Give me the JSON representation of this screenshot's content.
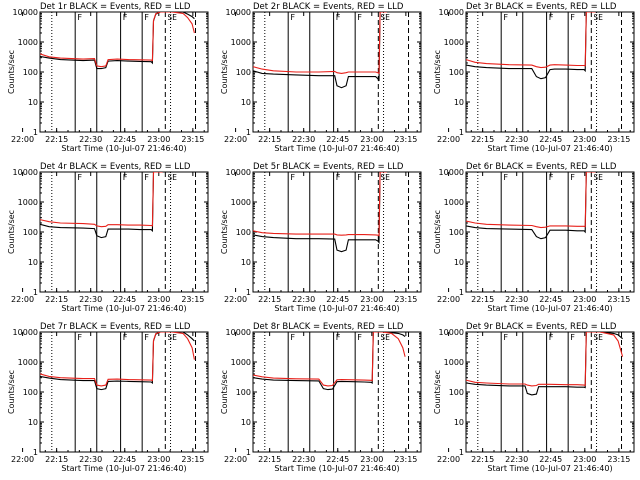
{
  "figure": {
    "panel_title_suffix": " BLACK = Events, RED = LLD",
    "xlabel": "Start Time (10-Jul-07 21:46:40)",
    "ylabel": "Counts/sec",
    "series_colors": {
      "events": "#000000",
      "lld": "#e8201a"
    },
    "xticks": [
      "22:00",
      "22:15",
      "22:30",
      "22:45",
      "23:00",
      "23:15"
    ],
    "xlim_minutes": [
      21.0,
      95.0
    ],
    "xtick_minutes": [
      13.33,
      28.33,
      43.33,
      58.33,
      73.33,
      88.33
    ],
    "ylim": [
      1,
      10000
    ],
    "marker_labels": [
      "F",
      "F",
      "F",
      "SE"
    ]
  },
  "chart_data": [
    {
      "type": "line",
      "id": "det1r",
      "title": "Det 1r",
      "ylim": [
        1,
        10000
      ],
      "series": [
        {
          "name": "Events",
          "x": [
            21,
            25,
            30,
            40,
            45,
            46,
            48,
            50,
            51,
            55,
            60,
            65,
            70,
            70.5,
            71,
            72,
            74,
            79,
            84,
            86,
            88,
            89
          ],
          "y": [
            330,
            290,
            260,
            240,
            250,
            130,
            130,
            140,
            230,
            240,
            230,
            225,
            220,
            200,
            5000,
            8500,
            10000,
            10000,
            10000,
            8500,
            7000,
            6000
          ]
        },
        {
          "name": "LLD",
          "x": [
            21,
            25,
            30,
            40,
            45,
            46,
            48,
            50,
            51,
            55,
            60,
            65,
            70,
            70.5,
            71,
            72,
            74,
            79,
            84,
            86,
            88,
            89
          ],
          "y": [
            400,
            320,
            290,
            270,
            280,
            160,
            150,
            160,
            260,
            270,
            260,
            255,
            250,
            240,
            5200,
            8800,
            10000,
            10000,
            9000,
            6500,
            4000,
            2000
          ]
        }
      ]
    },
    {
      "type": "line",
      "id": "det2r",
      "title": "Det 2r",
      "ylim": [
        1,
        10000
      ],
      "series": [
        {
          "name": "Events",
          "x": [
            21,
            25,
            30,
            40,
            50,
            57,
            58,
            60,
            62,
            63,
            70,
            75,
            76,
            76.5,
            77,
            80
          ],
          "y": [
            110,
            90,
            85,
            80,
            75,
            75,
            35,
            30,
            35,
            70,
            70,
            70,
            60,
            50,
            10000,
            10000
          ]
        },
        {
          "name": "LLD",
          "x": [
            21,
            25,
            30,
            40,
            50,
            57,
            58,
            60,
            62,
            63,
            70,
            75,
            76,
            76.5,
            77,
            80
          ],
          "y": [
            150,
            125,
            110,
            100,
            100,
            105,
            95,
            90,
            95,
            100,
            100,
            100,
            95,
            90,
            10000,
            10000
          ]
        }
      ]
    },
    {
      "type": "line",
      "id": "det3r",
      "title": "Det 3r",
      "ylim": [
        1,
        10000
      ],
      "series": [
        {
          "name": "Events",
          "x": [
            21,
            25,
            30,
            40,
            50,
            52,
            54,
            56,
            58,
            60,
            65,
            70,
            73,
            73.5,
            74,
            78
          ],
          "y": [
            170,
            150,
            140,
            130,
            130,
            70,
            60,
            65,
            120,
            125,
            125,
            120,
            120,
            110,
            10000,
            10000
          ]
        },
        {
          "name": "LLD",
          "x": [
            21,
            25,
            30,
            40,
            50,
            52,
            54,
            56,
            58,
            60,
            65,
            70,
            73,
            73.5,
            74,
            78
          ],
          "y": [
            260,
            210,
            190,
            175,
            170,
            150,
            140,
            145,
            170,
            175,
            170,
            165,
            165,
            160,
            10000,
            10000
          ]
        }
      ]
    },
    {
      "type": "line",
      "id": "det4r",
      "title": "Det 4r",
      "ylim": [
        1,
        10000
      ],
      "series": [
        {
          "name": "Events",
          "x": [
            21,
            25,
            30,
            40,
            45,
            46,
            48,
            50,
            51,
            55,
            60,
            65,
            70,
            70.5,
            71,
            75
          ],
          "y": [
            180,
            150,
            140,
            135,
            130,
            75,
            65,
            70,
            125,
            125,
            125,
            120,
            120,
            110,
            10000,
            10000
          ]
        },
        {
          "name": "LLD",
          "x": [
            21,
            25,
            30,
            40,
            45,
            46,
            48,
            50,
            51,
            55,
            60,
            65,
            70,
            70.5,
            71,
            75
          ],
          "y": [
            260,
            220,
            200,
            190,
            180,
            160,
            150,
            155,
            175,
            175,
            170,
            170,
            165,
            160,
            10000,
            10000
          ]
        }
      ]
    },
    {
      "type": "line",
      "id": "det5r",
      "title": "Det 5r",
      "ylim": [
        1,
        10000
      ],
      "series": [
        {
          "name": "Events",
          "x": [
            21,
            25,
            30,
            40,
            50,
            57,
            58,
            60,
            62,
            63,
            70,
            75,
            76,
            76.5,
            77,
            80
          ],
          "y": [
            80,
            70,
            65,
            60,
            60,
            58,
            25,
            22,
            25,
            55,
            55,
            55,
            50,
            45,
            10000,
            10000
          ]
        },
        {
          "name": "LLD",
          "x": [
            21,
            25,
            30,
            40,
            50,
            57,
            58,
            60,
            62,
            63,
            70,
            75,
            76,
            76.5,
            77,
            80
          ],
          "y": [
            110,
            95,
            90,
            85,
            85,
            85,
            80,
            78,
            80,
            82,
            82,
            80,
            78,
            75,
            10000,
            10000
          ]
        }
      ]
    },
    {
      "type": "line",
      "id": "det6r",
      "title": "Det 6r",
      "ylim": [
        1,
        10000
      ],
      "series": [
        {
          "name": "Events",
          "x": [
            21,
            25,
            30,
            40,
            50,
            52,
            54,
            56,
            58,
            60,
            65,
            70,
            73,
            73.5,
            74,
            78
          ],
          "y": [
            160,
            140,
            130,
            125,
            120,
            70,
            60,
            65,
            115,
            115,
            115,
            110,
            110,
            100,
            10000,
            10000
          ]
        },
        {
          "name": "LLD",
          "x": [
            21,
            25,
            30,
            40,
            50,
            52,
            54,
            56,
            58,
            60,
            65,
            70,
            73,
            73.5,
            74,
            78
          ],
          "y": [
            230,
            200,
            180,
            170,
            165,
            150,
            140,
            145,
            160,
            160,
            160,
            155,
            155,
            150,
            10000,
            10000
          ]
        }
      ]
    },
    {
      "type": "line",
      "id": "det7r",
      "title": "Det 7r",
      "ylim": [
        1,
        10000
      ],
      "series": [
        {
          "name": "Events",
          "x": [
            21,
            25,
            30,
            40,
            45,
            46,
            48,
            50,
            51,
            55,
            60,
            65,
            70,
            70.5,
            71,
            72,
            74,
            79,
            84,
            86,
            88,
            89
          ],
          "y": [
            330,
            290,
            260,
            240,
            240,
            130,
            120,
            130,
            225,
            230,
            225,
            220,
            215,
            200,
            5000,
            8500,
            10000,
            10000,
            10000,
            8000,
            6000,
            5000
          ]
        },
        {
          "name": "LLD",
          "x": [
            21,
            25,
            30,
            40,
            45,
            46,
            48,
            50,
            51,
            55,
            60,
            65,
            70,
            70.5,
            71,
            72,
            74,
            79,
            84,
            86,
            88,
            89
          ],
          "y": [
            400,
            330,
            300,
            280,
            280,
            170,
            160,
            170,
            265,
            270,
            260,
            255,
            250,
            240,
            5200,
            8800,
            10000,
            10000,
            9000,
            6000,
            3000,
            1200
          ]
        }
      ]
    },
    {
      "type": "line",
      "id": "det8r",
      "title": "Det 8r",
      "ylim": [
        1,
        10000
      ],
      "series": [
        {
          "name": "Events",
          "x": [
            21,
            25,
            30,
            40,
            50,
            52,
            54,
            56,
            58,
            60,
            65,
            70,
            73,
            73.5,
            74,
            78,
            82,
            85,
            87,
            88
          ],
          "y": [
            300,
            270,
            250,
            240,
            235,
            130,
            120,
            125,
            220,
            225,
            220,
            215,
            210,
            200,
            10000,
            10000,
            9500,
            9000,
            8000,
            7000
          ]
        },
        {
          "name": "LLD",
          "x": [
            21,
            25,
            30,
            40,
            50,
            52,
            54,
            56,
            58,
            60,
            65,
            70,
            73,
            73.5,
            74,
            78,
            82,
            85,
            87,
            88
          ],
          "y": [
            370,
            320,
            290,
            275,
            270,
            170,
            160,
            165,
            255,
            260,
            255,
            250,
            245,
            240,
            10000,
            10000,
            9000,
            6000,
            3000,
            1500
          ]
        }
      ]
    },
    {
      "type": "line",
      "id": "det9r",
      "title": "Det 9r",
      "ylim": [
        1,
        10000
      ],
      "series": [
        {
          "name": "Events",
          "x": [
            21,
            25,
            30,
            40,
            47,
            48,
            50,
            52,
            53,
            58,
            65,
            70,
            73,
            73.5,
            74,
            80,
            86,
            88,
            90
          ],
          "y": [
            200,
            180,
            170,
            160,
            160,
            90,
            80,
            85,
            150,
            150,
            150,
            145,
            145,
            140,
            10000,
            10000,
            9000,
            8000,
            6000
          ]
        },
        {
          "name": "LLD",
          "x": [
            21,
            25,
            30,
            40,
            47,
            48,
            50,
            52,
            53,
            58,
            65,
            70,
            73,
            73.5,
            74,
            80,
            86,
            88,
            90
          ],
          "y": [
            250,
            210,
            200,
            185,
            185,
            170,
            160,
            165,
            180,
            180,
            175,
            175,
            170,
            165,
            10000,
            10000,
            8000,
            5000,
            1500
          ]
        }
      ]
    }
  ]
}
